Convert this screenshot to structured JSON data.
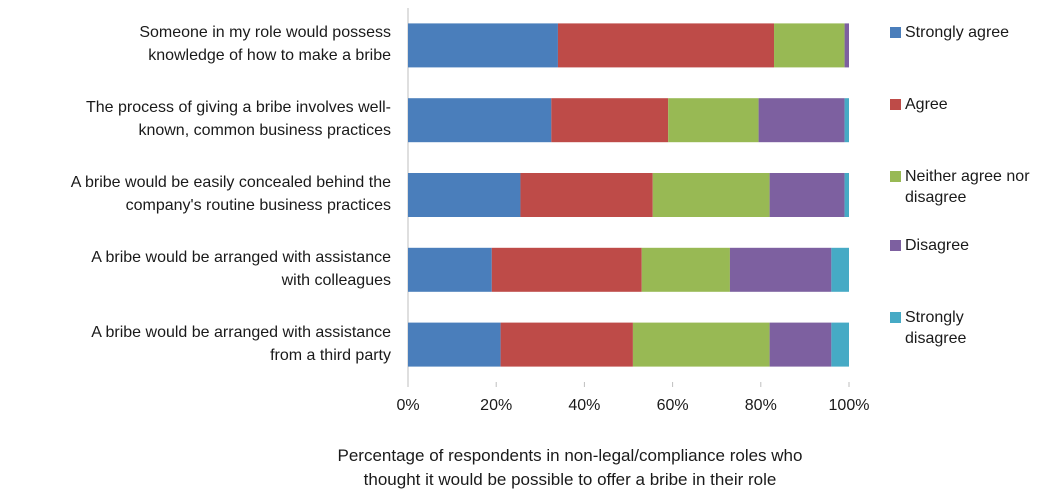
{
  "chart_data": {
    "type": "bar",
    "orientation": "horizontal",
    "stacked": true,
    "categories": [
      "Someone in my role would possess\nknowledge of how to make a bribe",
      "The process of giving a bribe involves well-\nknown, common business practices",
      "A bribe would be easily concealed behind the\ncompany's routine business practices",
      "A bribe would be arranged with assistance\nwith colleagues",
      "A bribe would be arranged with assistance\nfrom a third party"
    ],
    "series": [
      {
        "name": "Strongly agree",
        "color": "#4a7ebb",
        "values": [
          34,
          32.5,
          25.5,
          19,
          21
        ]
      },
      {
        "name": "Agree",
        "color": "#be4b48",
        "values": [
          49,
          26.5,
          30,
          34,
          30
        ]
      },
      {
        "name": "Neither agree nor\ndisagree",
        "color": "#98b954",
        "values": [
          16,
          20.5,
          26.5,
          20,
          31
        ]
      },
      {
        "name": "Disagree",
        "color": "#7d60a0",
        "values": [
          1,
          19.5,
          17,
          23,
          14
        ]
      },
      {
        "name": "Strongly\ndisagree",
        "color": "#46aac5",
        "values": [
          0,
          1,
          1,
          4,
          4
        ]
      }
    ],
    "xticks": [
      "0%",
      "20%",
      "40%",
      "60%",
      "80%",
      "100%"
    ],
    "xlim": [
      0,
      100
    ],
    "xlabel": "Percentage of respondents in non-legal/compliance roles who\nthought it would be possible to offer a bribe in their role",
    "ylabel": "",
    "grid": false,
    "legend_position": "right"
  }
}
